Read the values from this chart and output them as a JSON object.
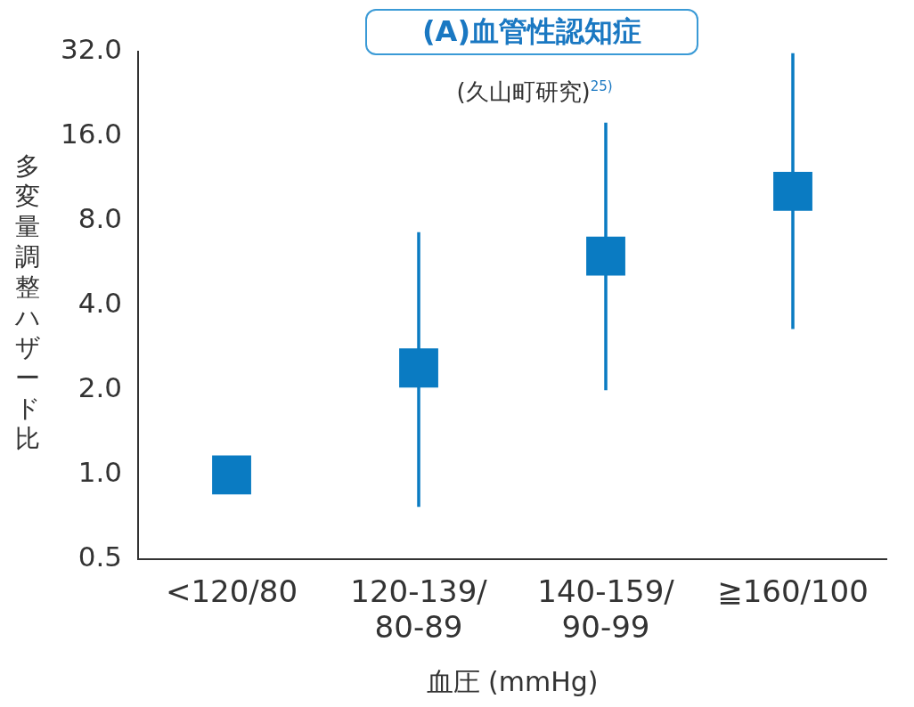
{
  "chart_data": {
    "type": "scatter",
    "title": "(A)血管性認知症",
    "subtitle": "(久山町研究)$^{25)}$",
    "xlabel": "血圧 (mmHg)",
    "ylabel": "多変量調整ハザード比",
    "categories": [
      "<120/80",
      "120-139/80-89",
      "140-159/90-99",
      "≧160/100"
    ],
    "series": [
      {
        "color": "#0a7bc2",
        "values": [
          1.0,
          2.4,
          6.0,
          10.2
        ],
        "errors": [
          null,
          [
            0.77,
            7.3
          ],
          [
            2.0,
            17.9
          ],
          [
            3.3,
            31.6
          ]
        ]
      }
    ],
    "log": "y",
    "ylim": [
      0.5,
      32
    ],
    "yticks": [
      {
        "value": 0.5,
        "label": "0.5"
      },
      {
        "value": 1,
        "label": "1.0"
      },
      {
        "value": 2,
        "label": "2.0"
      },
      {
        "value": 4,
        "label": "4.0"
      },
      {
        "value": 8,
        "label": "8.0"
      },
      {
        "value": 16,
        "label": "16.0"
      },
      {
        "value": 32,
        "label": "32.0"
      }
    ],
    "grid": false,
    "legend": false,
    "marker": "square"
  }
}
